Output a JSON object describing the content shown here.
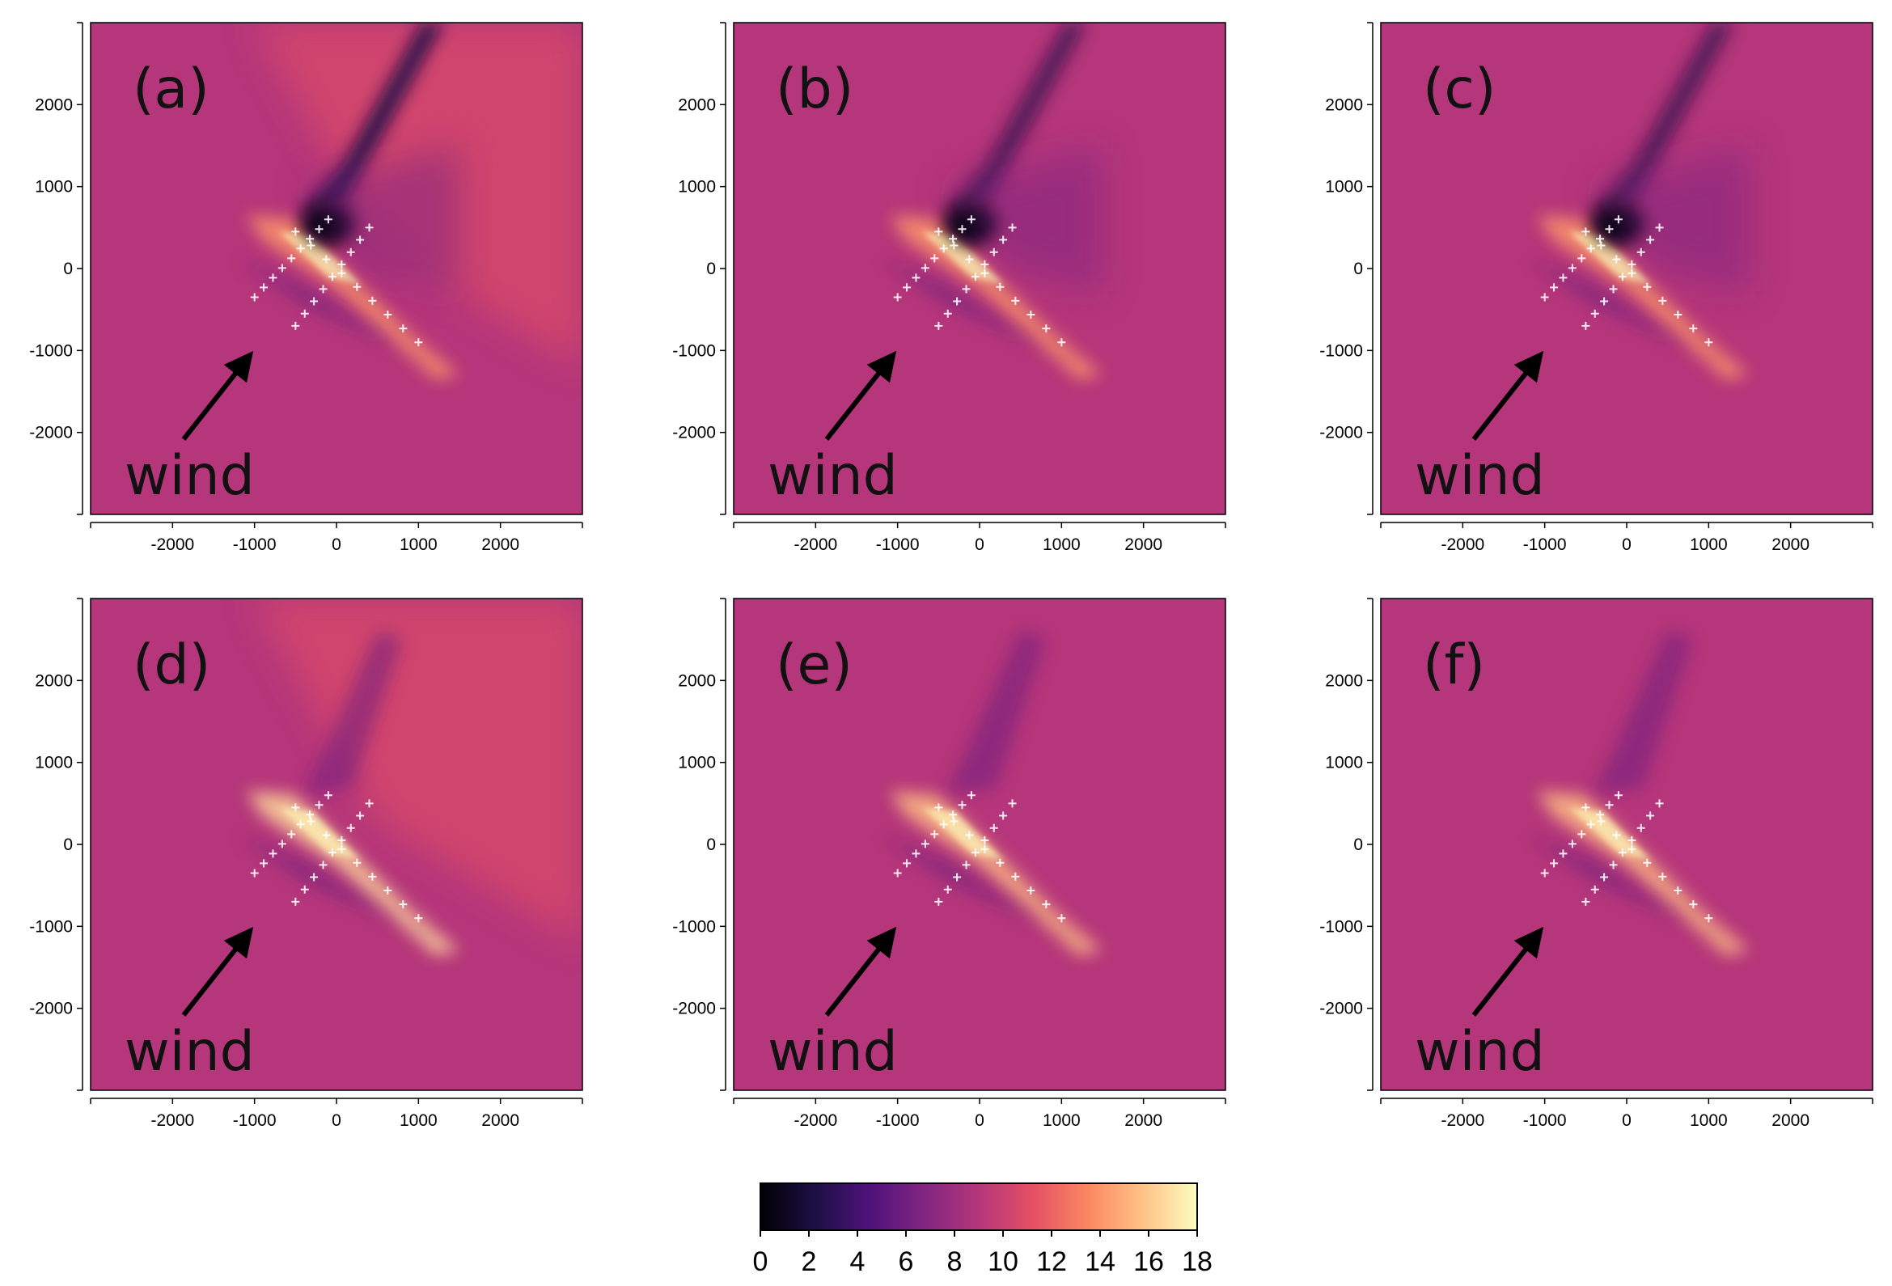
{
  "chart_data": {
    "type": "heatmap",
    "layout": "2x3 small multiples",
    "panels": [
      {
        "label": "(a)",
        "annotation": "wind",
        "variant": "high_contrast_wake"
      },
      {
        "label": "(b)",
        "annotation": "wind",
        "variant": "strong_wake"
      },
      {
        "label": "(c)",
        "annotation": "wind",
        "variant": "strong_wake"
      },
      {
        "label": "(d)",
        "annotation": "wind",
        "variant": "speedup"
      },
      {
        "label": "(e)",
        "annotation": "wind",
        "variant": "mild_speedup"
      },
      {
        "label": "(f)",
        "annotation": "wind",
        "variant": "mild_speedup"
      }
    ],
    "x_axis": {
      "ticks": [
        -2000,
        -1000,
        0,
        1000,
        2000
      ],
      "tick_labels": [
        "-2000",
        "-1000",
        "0",
        "1000",
        "2000"
      ],
      "range": [
        -3000,
        3000
      ]
    },
    "y_axis": {
      "ticks": [
        -2000,
        -1000,
        0,
        1000,
        2000
      ],
      "tick_labels": [
        "-2000",
        "-1000",
        "0",
        "1000",
        "2000"
      ],
      "range": [
        -3000,
        3000
      ]
    },
    "wind_direction": "from lower-left toward upper-right (arrow)",
    "turbine_markers": {
      "symbol": "+",
      "color": "#ffffff",
      "rows": [
        {
          "from": [
            -500,
            -700
          ],
          "to": [
            400,
            500
          ]
        },
        {
          "from": [
            -1000,
            -350
          ],
          "to": [
            -100,
            600
          ]
        },
        {
          "from": [
            -500,
            450
          ],
          "to": [
            1000,
            -900
          ]
        }
      ]
    },
    "colorbar": {
      "min": 0,
      "max": 18,
      "ticks": [
        0,
        2,
        4,
        6,
        8,
        10,
        12,
        14,
        16,
        18
      ],
      "tick_labels": [
        "0",
        "2",
        "4",
        "6",
        "8",
        "10",
        "12",
        "14",
        "16",
        "18"
      ],
      "colormap": "magma",
      "stops": [
        "#000004",
        "#1c1044",
        "#4f127b",
        "#812581",
        "#b5367a",
        "#e55064",
        "#fb8761",
        "#fec287",
        "#fcfdbf"
      ]
    },
    "background_value_approx": 9
  }
}
